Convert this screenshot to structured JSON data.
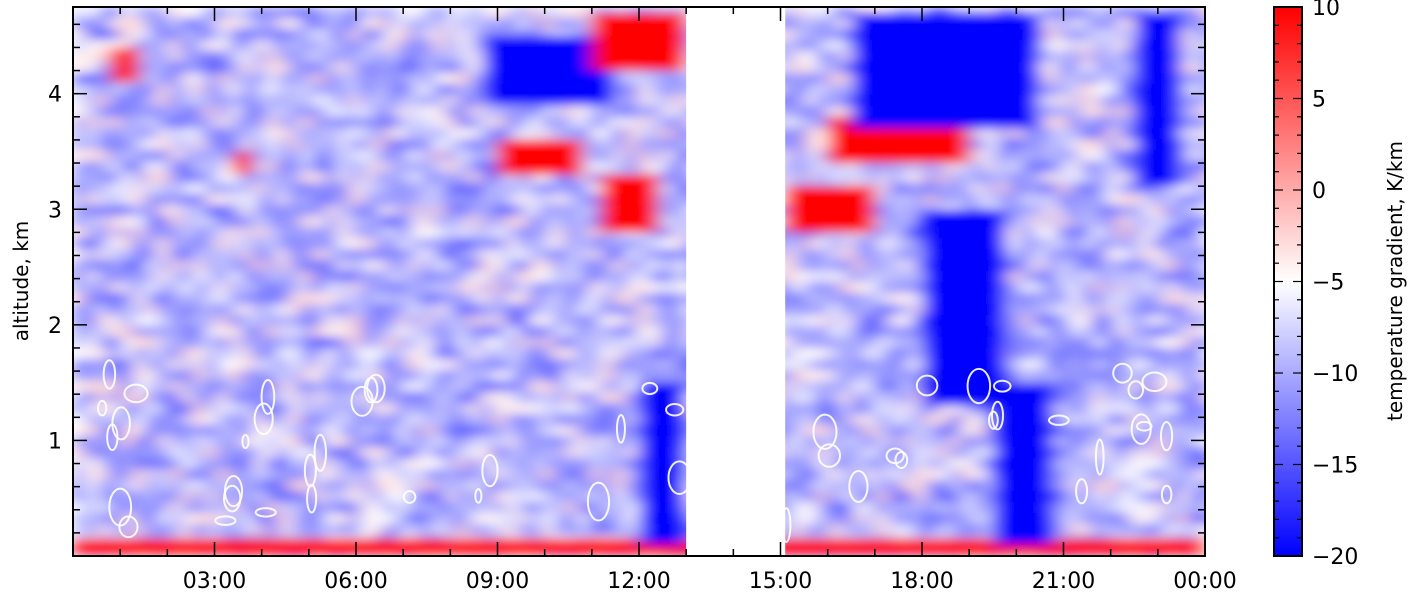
{
  "chart_data": {
    "type": "heatmap",
    "title": "",
    "xlabel": "",
    "ylabel": "altitude, km",
    "x_tick_labels": [
      "03:00",
      "06:00",
      "09:00",
      "12:00",
      "15:00",
      "18:00",
      "21:00",
      "00:00"
    ],
    "x_tick_hours": [
      3,
      6,
      9,
      12,
      15,
      18,
      21,
      24
    ],
    "xlim_hours": [
      0,
      24
    ],
    "y_tick_labels": [
      "1",
      "2",
      "3",
      "4"
    ],
    "y_tick_values": [
      1,
      2,
      3,
      4
    ],
    "ylim": [
      0,
      4.75
    ],
    "missing_data_hours": [
      13.0,
      15.1
    ],
    "colorbar": {
      "label": "temperature gradient, K/km",
      "tick_labels": [
        "10",
        "5",
        "0",
        "−5",
        "−10",
        "−15",
        "−20"
      ],
      "tick_values": [
        10,
        5,
        0,
        -5,
        -10,
        -15,
        -20
      ],
      "range": [
        -20,
        10
      ],
      "colors": [
        "#0000ff",
        "#ffffff",
        "#ff0000"
      ]
    },
    "approx_features": [
      {
        "hours": [
          0.0,
          24.0
        ],
        "altitude": [
          0.0,
          0.15
        ],
        "value": 10
      },
      {
        "hours": [
          8.7,
          11.5
        ],
        "altitude": [
          3.9,
          4.5
        ],
        "value": -20
      },
      {
        "hours": [
          9.0,
          10.8
        ],
        "altitude": [
          3.3,
          3.6
        ],
        "value": 10
      },
      {
        "hours": [
          11.0,
          13.0
        ],
        "altitude": [
          4.2,
          4.7
        ],
        "value": 10
      },
      {
        "hours": [
          11.2,
          12.4
        ],
        "altitude": [
          2.8,
          3.3
        ],
        "value": 10
      },
      {
        "hours": [
          12.0,
          13.0
        ],
        "altitude": [
          0.1,
          1.5
        ],
        "value": -20
      },
      {
        "hours": [
          15.1,
          17.0
        ],
        "altitude": [
          2.8,
          3.2
        ],
        "value": 10
      },
      {
        "hours": [
          16.0,
          19.0
        ],
        "altitude": [
          3.4,
          3.8
        ],
        "value": 10
      },
      {
        "hours": [
          16.5,
          20.5
        ],
        "altitude": [
          3.7,
          4.7
        ],
        "value": -20
      },
      {
        "hours": [
          18.0,
          19.8
        ],
        "altitude": [
          1.3,
          3.0
        ],
        "value": -20
      },
      {
        "hours": [
          19.5,
          20.8
        ],
        "altitude": [
          0.1,
          1.5
        ],
        "value": -20
      },
      {
        "hours": [
          22.5,
          23.5
        ],
        "altitude": [
          3.2,
          4.7
        ],
        "value": -20
      },
      {
        "hours": [
          3.4,
          3.8
        ],
        "altitude": [
          3.3,
          3.5
        ],
        "value": 7
      },
      {
        "hours": [
          0.8,
          1.4
        ],
        "altitude": [
          4.1,
          4.4
        ],
        "value": 8
      }
    ]
  }
}
